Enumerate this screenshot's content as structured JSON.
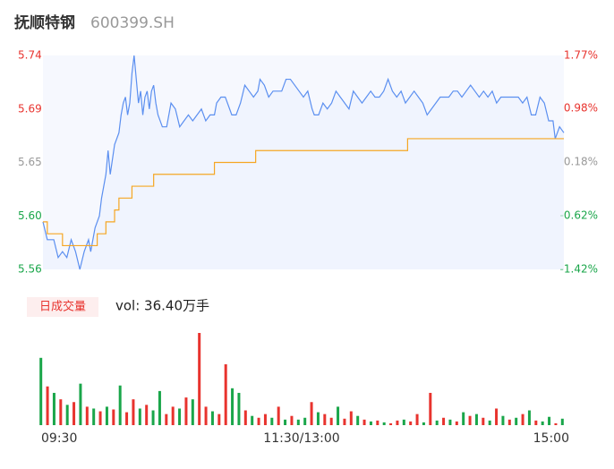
{
  "chart_data": [
    {
      "type": "line",
      "title": "抚顺特钢",
      "subtitle": "600399.SH",
      "xlim": [
        0,
        240
      ],
      "ylim": [
        5.56,
        5.74
      ],
      "yticks": [
        {
          "value": 5.74,
          "label": "5.74"
        },
        {
          "value": 5.695,
          "label": "5.69"
        },
        {
          "value": 5.65,
          "label": "5.65"
        },
        {
          "value": 5.605,
          "label": "5.60"
        },
        {
          "value": 5.56,
          "label": "5.56"
        }
      ],
      "ytick_colors": [
        "#e8332e",
        "#e8332e",
        "#999999",
        "#1aa64a",
        "#1aa64a"
      ],
      "y2lim": [
        -1.42,
        1.77
      ],
      "y2ticks": [
        {
          "value": 1.77,
          "label": "1.77%"
        },
        {
          "value": 0.98,
          "label": "0.98%"
        },
        {
          "value": 0.18,
          "label": "0.18%"
        },
        {
          "value": -0.62,
          "label": "-0.62%"
        },
        {
          "value": -1.42,
          "label": "-1.42%"
        }
      ],
      "y2tick_colors": [
        "#e8332e",
        "#e8332e",
        "#999999",
        "#1aa64a",
        "#1aa64a"
      ],
      "series": [
        {
          "color": "#5b8ff0",
          "style": "line",
          "x": [
            0,
            2,
            5,
            7,
            9,
            11,
            13,
            15,
            17,
            19,
            21,
            22,
            24,
            26,
            27,
            29,
            30,
            31,
            33,
            35,
            36,
            37,
            38,
            39,
            40,
            41,
            42,
            43,
            44,
            45,
            46,
            47,
            48,
            49,
            50,
            51,
            52,
            53,
            55,
            57,
            59,
            61,
            63,
            65,
            67,
            69,
            71,
            73,
            75,
            77,
            79,
            80,
            82,
            84,
            86,
            87,
            89,
            91,
            93,
            95,
            97,
            99,
            100,
            102,
            104,
            106,
            108,
            110,
            112,
            114,
            116,
            118,
            120,
            122,
            124,
            125,
            127,
            129,
            131,
            133,
            135,
            137,
            139,
            141,
            143,
            145,
            147,
            149,
            151,
            153,
            155,
            157,
            159,
            161,
            163,
            165,
            167,
            169,
            171,
            173,
            175,
            177,
            179,
            181,
            183,
            185,
            187,
            189,
            191,
            193,
            195,
            197,
            199,
            201,
            203,
            205,
            207,
            209,
            211,
            213,
            215,
            217,
            219,
            221,
            223,
            225,
            227,
            229,
            231,
            233,
            235,
            236,
            238,
            240
          ],
          "values": [
            5.6,
            5.585,
            5.585,
            5.57,
            5.575,
            5.57,
            5.585,
            5.575,
            5.56,
            5.575,
            5.585,
            5.575,
            5.595,
            5.605,
            5.62,
            5.64,
            5.66,
            5.64,
            5.665,
            5.675,
            5.69,
            5.7,
            5.705,
            5.69,
            5.7,
            5.725,
            5.74,
            5.72,
            5.7,
            5.71,
            5.69,
            5.705,
            5.71,
            5.695,
            5.71,
            5.715,
            5.7,
            5.69,
            5.68,
            5.68,
            5.7,
            5.695,
            5.68,
            5.685,
            5.69,
            5.685,
            5.69,
            5.695,
            5.685,
            5.69,
            5.69,
            5.7,
            5.705,
            5.705,
            5.695,
            5.69,
            5.69,
            5.7,
            5.715,
            5.71,
            5.705,
            5.71,
            5.72,
            5.715,
            5.705,
            5.71,
            5.71,
            5.71,
            5.72,
            5.72,
            5.715,
            5.71,
            5.705,
            5.71,
            5.695,
            5.69,
            5.69,
            5.7,
            5.695,
            5.7,
            5.71,
            5.705,
            5.7,
            5.695,
            5.71,
            5.705,
            5.7,
            5.705,
            5.71,
            5.705,
            5.705,
            5.71,
            5.72,
            5.71,
            5.705,
            5.71,
            5.7,
            5.705,
            5.71,
            5.705,
            5.7,
            5.69,
            5.695,
            5.7,
            5.705,
            5.705,
            5.705,
            5.71,
            5.71,
            5.705,
            5.71,
            5.715,
            5.71,
            5.705,
            5.71,
            5.705,
            5.71,
            5.7,
            5.705,
            5.705,
            5.705,
            5.705,
            5.705,
            5.7,
            5.705,
            5.69,
            5.69,
            5.705,
            5.7,
            5.685,
            5.685,
            5.67,
            5.68,
            5.675
          ]
        },
        {
          "color": "#f5a623",
          "style": "step",
          "x": [
            0,
            2,
            9,
            25,
            29,
            33,
            35,
            41,
            51,
            79,
            98,
            168,
            240
          ],
          "values": [
            5.6,
            5.59,
            5.58,
            5.59,
            5.6,
            5.61,
            5.62,
            5.63,
            5.64,
            5.65,
            5.66,
            5.67,
            5.67
          ]
        }
      ]
    },
    {
      "type": "bar",
      "label": "日成交量",
      "annotation": "vol: 36.40万手",
      "xticks": [
        {
          "value": 0,
          "label": "09:30"
        },
        {
          "value": 120,
          "label": "11:30/13:00"
        },
        {
          "value": 240,
          "label": "15:00"
        }
      ],
      "xlim": [
        0,
        240
      ],
      "ylim": [
        0,
        100
      ],
      "values": [
        73,
        42,
        35,
        28,
        22,
        25,
        45,
        20,
        18,
        15,
        20,
        17,
        43,
        14,
        28,
        18,
        22,
        16,
        37,
        12,
        20,
        18,
        30,
        28,
        100,
        20,
        15,
        12,
        66,
        40,
        35,
        16,
        10,
        8,
        12,
        8,
        20,
        6,
        10,
        6,
        8,
        25,
        14,
        12,
        8,
        20,
        7,
        15,
        10,
        6,
        4,
        5,
        3,
        2,
        5,
        6,
        4,
        12,
        3,
        35,
        5,
        8,
        6,
        4,
        14,
        10,
        12,
        8,
        5,
        18,
        10,
        6,
        8,
        12,
        16,
        5,
        4,
        9,
        2,
        7
      ],
      "colors": [
        "g",
        "r",
        "g",
        "r",
        "g",
        "r",
        "g",
        "r",
        "g",
        "r",
        "g",
        "r",
        "g",
        "r",
        "r",
        "g",
        "r",
        "g",
        "g",
        "r",
        "r",
        "g",
        "r",
        "g",
        "r",
        "r",
        "g",
        "r",
        "r",
        "g",
        "g",
        "r",
        "g",
        "r",
        "r",
        "g",
        "r",
        "g",
        "r",
        "g",
        "g",
        "r",
        "g",
        "r",
        "r",
        "g",
        "r",
        "r",
        "g",
        "r",
        "g",
        "r",
        "g",
        "r",
        "r",
        "g",
        "r",
        "r",
        "g",
        "r",
        "g",
        "r",
        "g",
        "r",
        "g",
        "r",
        "g",
        "r",
        "g",
        "r",
        "g",
        "r",
        "g",
        "r",
        "g",
        "r",
        "g",
        "g",
        "r",
        "g"
      ],
      "color_map": {
        "r": "#e8332e",
        "g": "#1aa64a"
      }
    }
  ]
}
